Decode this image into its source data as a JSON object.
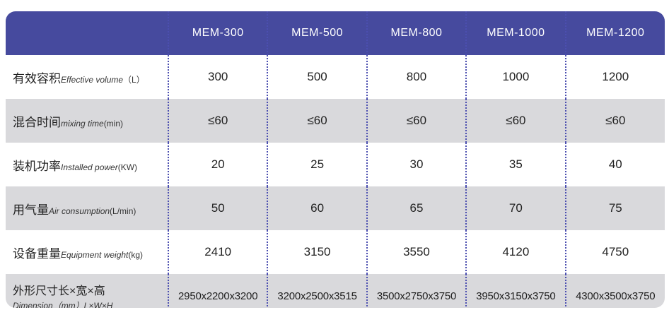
{
  "header": {
    "models": [
      "MEM-300",
      "MEM-500",
      "MEM-800",
      "MEM-1000",
      "MEM-1200"
    ]
  },
  "rows": [
    {
      "zh": "有效容积",
      "en": "Effective volume",
      "unit": "（L）",
      "values": [
        "300",
        "500",
        "800",
        "1000",
        "1200"
      ]
    },
    {
      "zh": "混合时间",
      "en": "mixing time",
      "unit": "(min)",
      "values": [
        "≤60",
        "≤60",
        "≤60",
        "≤60",
        "≤60"
      ]
    },
    {
      "zh": "装机功率",
      "en": "Installed power",
      "unit": "(KW)",
      "values": [
        "20",
        "25",
        "30",
        "35",
        "40"
      ]
    },
    {
      "zh": "用气量",
      "en": "Air consumption",
      "unit": "(L/min)",
      "values": [
        "50",
        "60",
        "65",
        "70",
        "75"
      ]
    },
    {
      "zh": "设备重量",
      "en": "Equipment weight",
      "unit": "(kg)",
      "values": [
        "2410",
        "3150",
        "3550",
        "4120",
        "4750"
      ]
    },
    {
      "zh": "外形尺寸长×宽×高",
      "en": "Dimension（mm）L×W×H",
      "unit": "",
      "values": [
        "2950x2200x3200",
        "3200x2500x3515",
        "3500x2750x3750",
        "3950x3150x3750",
        "4300x3500x3750"
      ]
    }
  ],
  "colors": {
    "header_bg": "#464a9e",
    "row_alt_bg": "#d9d9dc",
    "separator": "#4c4fb0"
  }
}
